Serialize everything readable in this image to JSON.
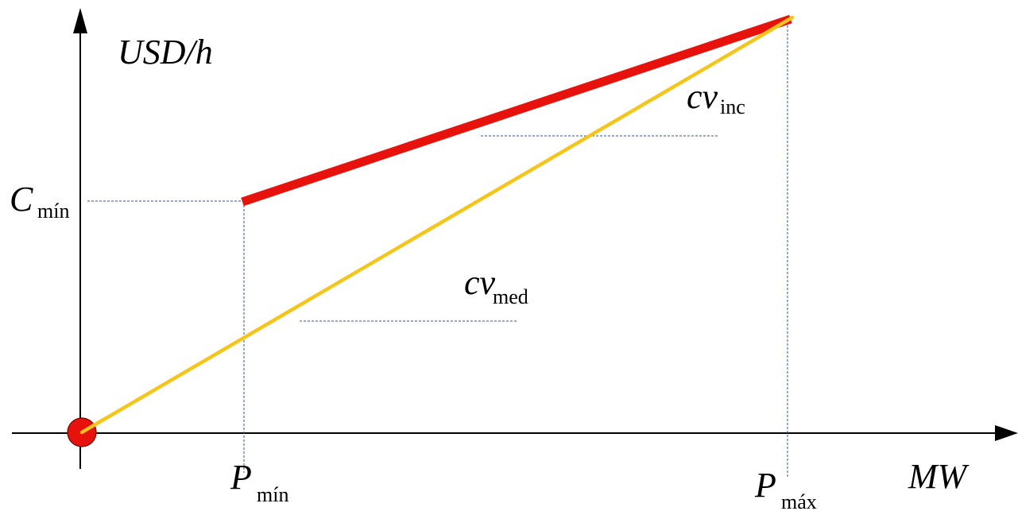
{
  "axes": {
    "y_label": "USD/h",
    "x_label": "MW"
  },
  "labels": {
    "c_min": {
      "main": "C",
      "sub": "mín"
    },
    "p_min": {
      "main": "P",
      "sub": "mín"
    },
    "p_max": {
      "main": "P",
      "sub": "máx"
    },
    "cv_inc": {
      "main": "cv",
      "sub": "inc"
    },
    "cv_med": {
      "main": "cv",
      "sub": "med"
    }
  },
  "colors": {
    "axis": "#000000",
    "guide": "#2f5597",
    "cost_line": "#e8120c",
    "average_line": "#f5c518",
    "origin_marker": "#e8120c"
  }
}
